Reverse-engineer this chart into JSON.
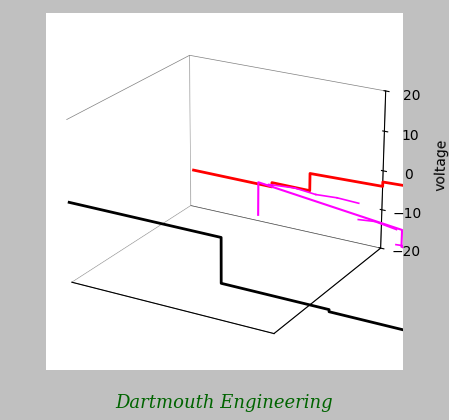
{
  "title": "Dartmouth Engineering",
  "title_color": "#006400",
  "ylabel": "voltage",
  "background_color": "#c0c0c0",
  "panel_color": "#ffffff",
  "zlim": [
    -20,
    20
  ],
  "zticks": [
    -20,
    -10,
    0,
    10,
    20
  ],
  "xlim": [
    0,
    4
  ],
  "ylim": [
    0,
    10
  ],
  "black_depth": 0,
  "black_t": [
    0,
    3,
    3,
    5,
    5,
    6.5,
    6.5,
    8,
    8,
    10
  ],
  "black_v": [
    0,
    0,
    -11,
    -11,
    -11.5,
    -11.5,
    -10,
    -10,
    -10,
    -10
  ],
  "red_depth": 2,
  "red_t": [
    2,
    3.5,
    3.5,
    4.2,
    4.2,
    5.5,
    5.5,
    6.5,
    6.5,
    8.0,
    8.0,
    10
  ],
  "red_v": [
    9.5,
    9.5,
    10.5,
    10.5,
    14.5,
    15.0,
    16.0,
    16.5,
    17.0,
    17.5,
    20.0,
    20.0
  ],
  "magenta_depth": 4,
  "magenta_t": [
    2.8,
    2.8,
    5.5,
    5.5,
    6.2,
    6.2,
    6.5,
    6.5,
    7.5
  ],
  "magenta_v": [
    -3,
    5,
    1,
    -3,
    -5,
    -3,
    0,
    22,
    22
  ],
  "magenta_noise": [
    {
      "t": [
        3.0,
        3.5
      ],
      "v": [
        5.0,
        5.5
      ]
    },
    {
      "t": [
        3.5,
        3.9
      ],
      "v": [
        5.5,
        5.0
      ]
    },
    {
      "t": [
        3.9,
        4.3
      ],
      "v": [
        5.0,
        5.3
      ]
    },
    {
      "t": [
        4.3,
        4.7
      ],
      "v": [
        5.3,
        5.1
      ]
    },
    {
      "t": [
        4.7,
        5.0
      ],
      "v": [
        1.2,
        1.6
      ]
    },
    {
      "t": [
        5.0,
        5.4
      ],
      "v": [
        1.6,
        0.8
      ]
    },
    {
      "t": [
        5.4,
        5.7
      ],
      "v": [
        -2.8,
        -2.5
      ]
    },
    {
      "t": [
        5.7,
        6.0
      ],
      "v": [
        -2.5,
        -3.2
      ]
    },
    {
      "t": [
        6.0,
        6.3
      ],
      "v": [
        -4.8,
        -5.2
      ]
    },
    {
      "t": [
        6.3,
        6.6
      ],
      "v": [
        -5.2,
        -4.5
      ]
    }
  ],
  "elev": 22,
  "azim": -60
}
